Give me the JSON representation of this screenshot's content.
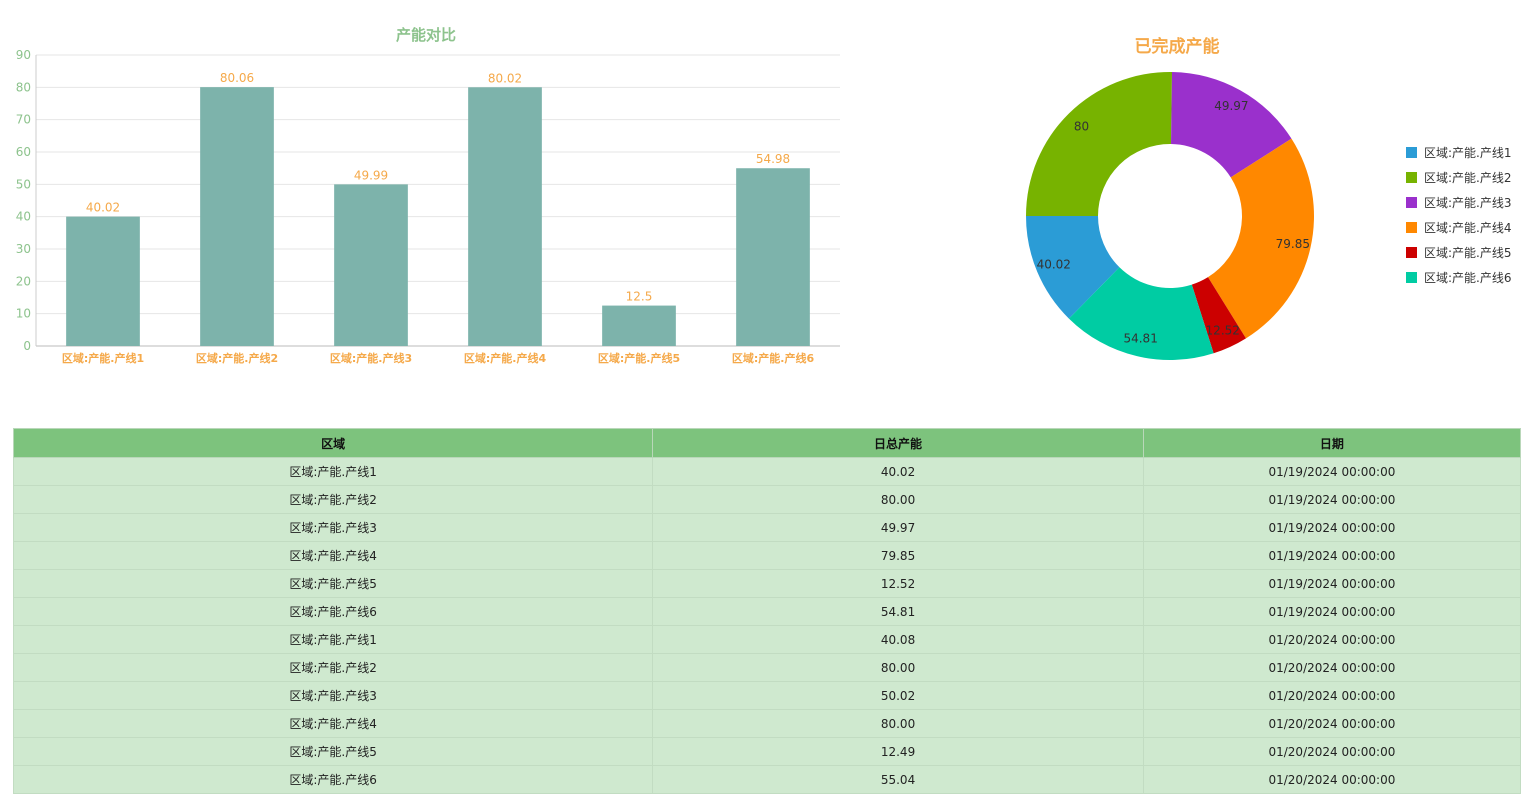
{
  "chart_data": [
    {
      "type": "bar",
      "title": "产能对比",
      "categories": [
        "区域:产能.产线1",
        "区域:产能.产线2",
        "区域:产能.产线3",
        "区域:产能.产线4",
        "区域:产能.产线5",
        "区域:产能.产线6"
      ],
      "values": [
        40.02,
        80.06,
        49.99,
        80.02,
        12.5,
        54.98
      ],
      "value_labels": [
        "40.02",
        "80.06",
        "49.99",
        "80.02",
        "12.5",
        "54.98"
      ],
      "ylim": [
        0,
        90
      ],
      "yticks": [
        "0",
        "10",
        "20",
        "30",
        "40",
        "50",
        "60",
        "70",
        "80",
        "90"
      ],
      "grid": true,
      "colors": {
        "bar": "#7db3ab",
        "title": "#8dc38d",
        "value_label": "#f5a94a",
        "category_label": "#f5a94a",
        "tick": "#8dc38d"
      }
    },
    {
      "type": "pie",
      "title": "已完成产能",
      "labels": [
        "区域:产能.产线1",
        "区域:产能.产线2",
        "区域:产能.产线3",
        "区域:产能.产线4",
        "区域:产能.产线5",
        "区域:产能.产线6"
      ],
      "values": [
        40.02,
        80,
        49.97,
        79.85,
        12.52,
        54.81
      ],
      "value_labels": [
        "40.02",
        "80",
        "49.97",
        "79.85",
        "12.52",
        "54.81"
      ],
      "colors": [
        "#2b9cd6",
        "#77b300",
        "#9a30cc",
        "#ff8800",
        "#cc0000",
        "#00cca3"
      ],
      "title_color": "#f5a94a",
      "legend_position": "right"
    }
  ],
  "table": {
    "headers": [
      "区域",
      "日总产能",
      "日期"
    ],
    "rows": [
      [
        "区域:产能.产线1",
        "40.02",
        "01/19/2024 00:00:00"
      ],
      [
        "区域:产能.产线2",
        "80.00",
        "01/19/2024 00:00:00"
      ],
      [
        "区域:产能.产线3",
        "49.97",
        "01/19/2024 00:00:00"
      ],
      [
        "区域:产能.产线4",
        "79.85",
        "01/19/2024 00:00:00"
      ],
      [
        "区域:产能.产线5",
        "12.52",
        "01/19/2024 00:00:00"
      ],
      [
        "区域:产能.产线6",
        "54.81",
        "01/19/2024 00:00:00"
      ],
      [
        "区域:产能.产线1",
        "40.08",
        "01/20/2024 00:00:00"
      ],
      [
        "区域:产能.产线2",
        "80.00",
        "01/20/2024 00:00:00"
      ],
      [
        "区域:产能.产线3",
        "50.02",
        "01/20/2024 00:00:00"
      ],
      [
        "区域:产能.产线4",
        "80.00",
        "01/20/2024 00:00:00"
      ],
      [
        "区域:产能.产线5",
        "12.49",
        "01/20/2024 00:00:00"
      ],
      [
        "区域:产能.产线6",
        "55.04",
        "01/20/2024 00:00:00"
      ]
    ]
  }
}
